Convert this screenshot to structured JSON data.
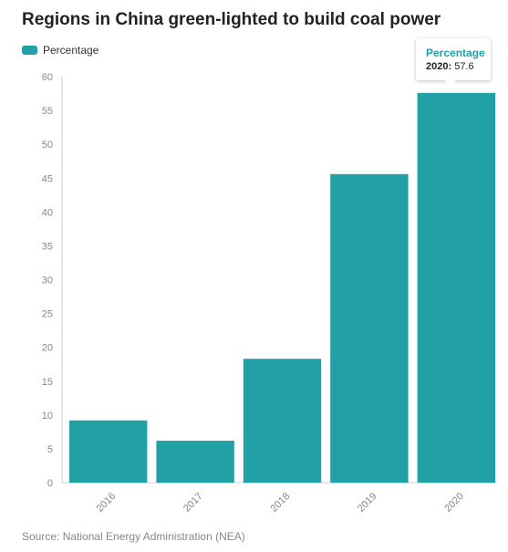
{
  "title": "Regions in China green-lighted to build coal power",
  "source": "Source: National Energy Administration (NEA)",
  "colors": {
    "bar": "#21a0a6",
    "tooltip_title": "#21a0a6",
    "axis": "#cccccc",
    "tick_text": "#888888"
  },
  "chart_data": {
    "type": "bar",
    "categories": [
      "2016",
      "2017",
      "2018",
      "2019",
      "2020"
    ],
    "series": [
      {
        "name": "Percentage",
        "values": [
          9.2,
          6.2,
          18.3,
          45.6,
          57.6
        ]
      }
    ],
    "ylim": [
      0,
      60
    ],
    "yticks": [
      0,
      5,
      10,
      15,
      20,
      25,
      30,
      35,
      40,
      45,
      50,
      55,
      60
    ],
    "grid": false,
    "legend": "top-left"
  },
  "tooltip": {
    "series": "Percentage",
    "category": "2020:",
    "value": "57.6"
  }
}
